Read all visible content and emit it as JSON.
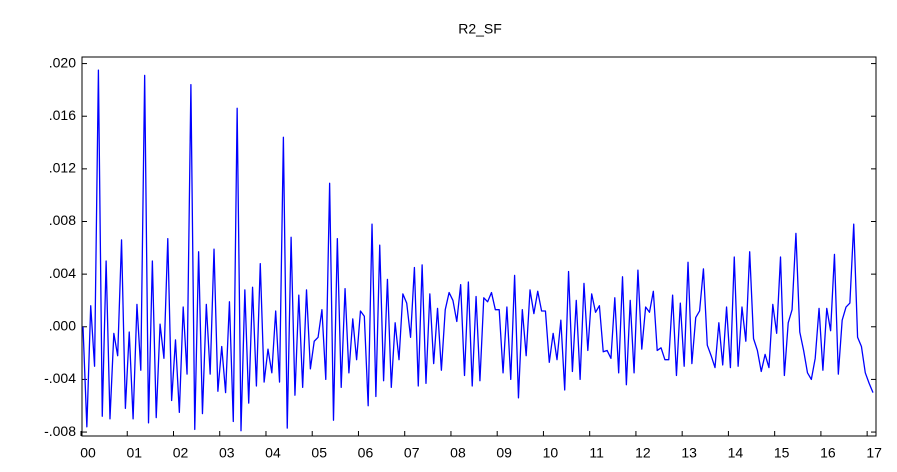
{
  "chart_data": {
    "type": "line",
    "title": "R2_SF",
    "categories": [
      "00",
      null,
      null,
      null,
      null,
      null,
      null,
      null,
      null,
      null,
      null,
      null,
      "01",
      null,
      null,
      null,
      null,
      null,
      null,
      null,
      null,
      null,
      null,
      null,
      "02",
      null,
      null,
      null,
      null,
      null,
      null,
      null,
      null,
      null,
      null,
      null,
      "03",
      null,
      null,
      null,
      null,
      null,
      null,
      null,
      null,
      null,
      null,
      null,
      "04",
      null,
      null,
      null,
      null,
      null,
      null,
      null,
      null,
      null,
      null,
      null,
      "05",
      null,
      null,
      null,
      null,
      null,
      null,
      null,
      null,
      null,
      null,
      null,
      "06",
      null,
      null,
      null,
      null,
      null,
      null,
      null,
      null,
      null,
      null,
      null,
      "07",
      null,
      null,
      null,
      null,
      null,
      null,
      null,
      null,
      null,
      null,
      null,
      "08",
      null,
      null,
      null,
      null,
      null,
      null,
      null,
      null,
      null,
      null,
      null,
      "09",
      null,
      null,
      null,
      null,
      null,
      null,
      null,
      null,
      null,
      null,
      null,
      "10",
      null,
      null,
      null,
      null,
      null,
      null,
      null,
      null,
      null,
      null,
      null,
      "11",
      null,
      null,
      null,
      null,
      null,
      null,
      null,
      null,
      null,
      null,
      null,
      "12",
      null,
      null,
      null,
      null,
      null,
      null,
      null,
      null,
      null,
      null,
      null,
      "13",
      null,
      null,
      null,
      null,
      null,
      null,
      null,
      null,
      null,
      null,
      null,
      "14",
      null,
      null,
      null,
      null,
      null,
      null,
      null,
      null,
      null,
      null,
      null,
      "15",
      null,
      null,
      null,
      null,
      null,
      null,
      null,
      null,
      null,
      null,
      null,
      "16",
      null,
      null,
      null,
      null,
      null,
      null,
      null,
      null,
      null,
      null,
      null,
      "17",
      null
    ],
    "series": [
      {
        "name": "R2_SF",
        "color": "#0000ff",
        "values": [
          0.0,
          -0.0076,
          0.0016,
          -0.003,
          0.0195,
          -0.0068,
          0.005,
          -0.007,
          -0.0005,
          -0.0022,
          0.0066,
          -0.0062,
          -0.0004,
          -0.007,
          0.0017,
          -0.0033,
          0.0191,
          -0.0073,
          0.005,
          -0.0069,
          0.0002,
          -0.0024,
          0.0067,
          -0.0056,
          -0.001,
          -0.0065,
          0.0015,
          -0.0036,
          0.0184,
          -0.0078,
          0.0057,
          -0.0066,
          0.0017,
          -0.0036,
          0.0059,
          -0.0049,
          -0.0015,
          -0.005,
          0.0019,
          -0.0072,
          0.0166,
          -0.0079,
          0.0028,
          -0.0058,
          0.003,
          -0.0045,
          0.0048,
          -0.0042,
          -0.0017,
          -0.0035,
          0.0012,
          -0.0042,
          0.0144,
          -0.0077,
          0.0068,
          -0.0052,
          0.0024,
          -0.0046,
          0.0028,
          -0.0032,
          -0.0011,
          -0.0008,
          0.0013,
          -0.004,
          0.0109,
          -0.0071,
          0.0067,
          -0.0046,
          0.0029,
          -0.0035,
          0.0006,
          -0.0025,
          0.0012,
          0.0008,
          -0.006,
          0.0078,
          -0.0053,
          0.0062,
          -0.0041,
          0.0036,
          -0.0046,
          0.0003,
          -0.0025,
          0.0025,
          0.0018,
          -0.0008,
          0.0045,
          -0.0045,
          0.0047,
          -0.0043,
          0.0025,
          -0.0028,
          0.0014,
          -0.0033,
          0.0013,
          0.0026,
          0.002,
          0.0004,
          0.0032,
          -0.0037,
          0.0034,
          -0.0045,
          0.0023,
          -0.0041,
          0.0022,
          0.0019,
          0.0026,
          0.0013,
          0.0013,
          -0.0035,
          0.0015,
          -0.004,
          0.0039,
          -0.0054,
          0.0013,
          -0.0022,
          0.0028,
          0.001,
          0.0027,
          0.0012,
          0.0012,
          -0.0027,
          -0.0005,
          -0.0025,
          0.0005,
          -0.0048,
          0.0042,
          -0.0034,
          0.002,
          -0.004,
          0.0033,
          -0.0018,
          0.0025,
          0.0011,
          0.0016,
          -0.0019,
          -0.0018,
          -0.0024,
          0.0022,
          -0.0035,
          0.0038,
          -0.0044,
          0.002,
          -0.0035,
          0.0043,
          -0.0017,
          0.0015,
          0.0011,
          0.0027,
          -0.0018,
          -0.0016,
          -0.0025,
          -0.0025,
          0.0024,
          -0.0037,
          0.0018,
          -0.003,
          0.0049,
          -0.0028,
          0.0007,
          0.0012,
          0.0044,
          -0.0014,
          -0.0022,
          -0.0031,
          0.0003,
          -0.0029,
          0.0015,
          -0.0031,
          0.0053,
          -0.003,
          0.0015,
          -0.0011,
          0.0057,
          -0.0009,
          -0.0018,
          -0.0034,
          -0.0021,
          -0.0031,
          0.0017,
          -0.0005,
          0.0053,
          -0.0037,
          0.0003,
          0.0013,
          0.0071,
          -0.0004,
          -0.0018,
          -0.0035,
          -0.004,
          -0.0024,
          0.0014,
          -0.0033,
          0.0014,
          -0.0003,
          0.0055,
          -0.0036,
          0.0005,
          0.0015,
          0.0018,
          0.0078,
          -0.0008,
          -0.0015,
          -0.0035,
          -0.0043,
          -0.005
        ]
      }
    ],
    "ylim": [
      -0.0083,
      0.0205
    ],
    "yticks": [
      {
        "value": -0.008,
        "label": "-.008"
      },
      {
        "value": -0.004,
        "label": "-.004"
      },
      {
        "value": 0,
        "label": ".000"
      },
      {
        "value": 0.004,
        "label": ".004"
      },
      {
        "value": 0.008,
        "label": ".008"
      },
      {
        "value": 0.012,
        "label": ".012"
      },
      {
        "value": 0.016,
        "label": ".016"
      },
      {
        "value": 0.02,
        "label": ".020"
      }
    ],
    "grid": false
  }
}
